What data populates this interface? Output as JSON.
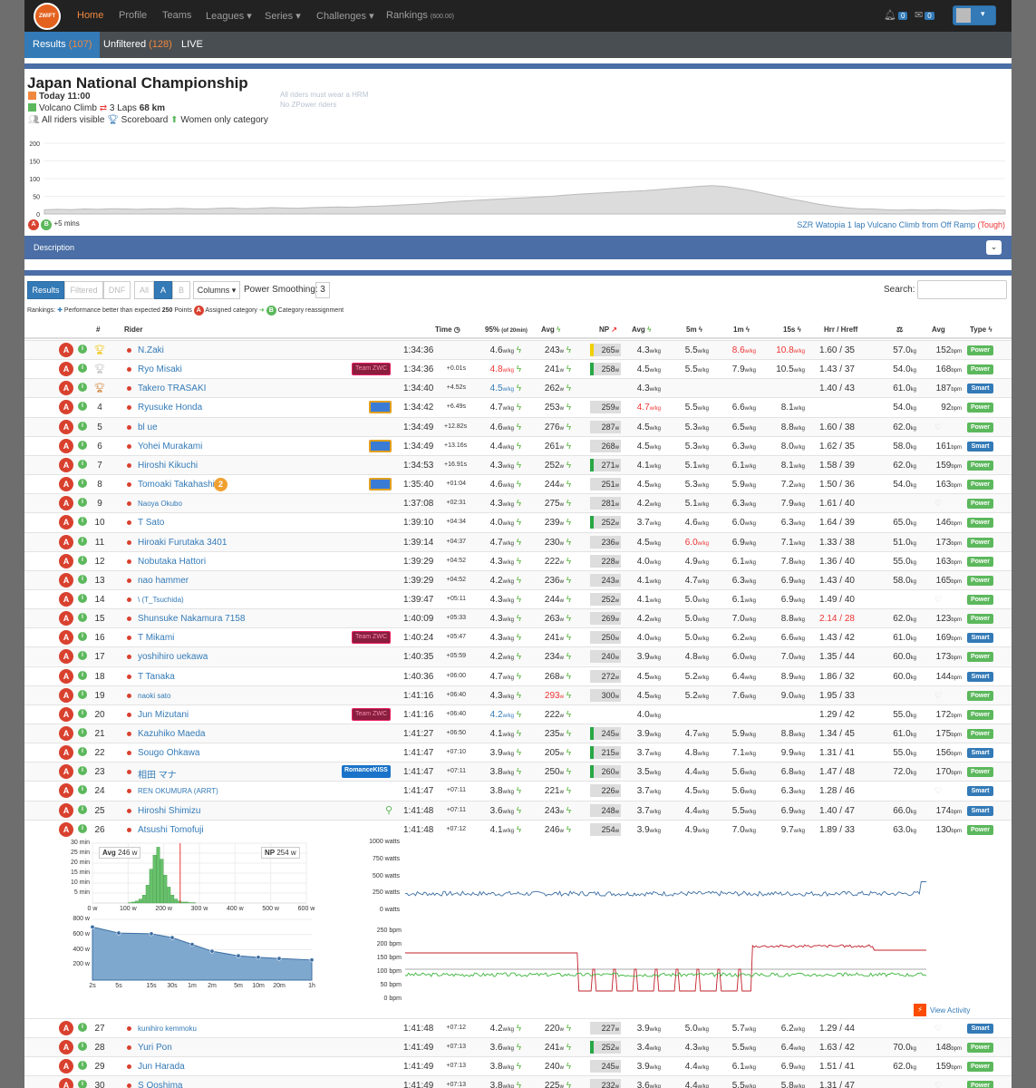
{
  "nav": {
    "logo": "ZWIFT POWER",
    "links": [
      "Home",
      "Profile",
      "Teams",
      "Leagues",
      "Series",
      "Challenges",
      "Rankings"
    ],
    "rankings_suffix": "(600.00)",
    "bell_count": "0",
    "mail_count": "0"
  },
  "subnav": {
    "results_label": "Results",
    "results_count": "(107)",
    "unfiltered_label": "Unfiltered",
    "unfiltered_count": "(128)",
    "live_label": "LIVE"
  },
  "event": {
    "title": "Japan National Championship",
    "date": "Today 11:00",
    "route": "Volcano Climb",
    "laps": "3 Laps",
    "distance": "68 km",
    "visibility": "All riders visible",
    "scoreboard": "Scoreboard",
    "women": "Women only category",
    "note1": "All riders must wear a HRM",
    "note2": "No ZPower riders",
    "cat_a": "A",
    "cat_b": "B",
    "cat_gap": "+5 mins",
    "route_desc": "SZR Watopia 1 lap Vulcano Climb from Off Ramp",
    "route_diff": "(Tough)",
    "elev_ticks": [
      "200",
      "150",
      "100",
      "50",
      "0"
    ],
    "elevation_profile": [
      12,
      13,
      12,
      14,
      13,
      15,
      14,
      13,
      15,
      14,
      16,
      15,
      14,
      16,
      17,
      15,
      16,
      18,
      17,
      16,
      18,
      19,
      20,
      19,
      21,
      22,
      24,
      26,
      28,
      30,
      33,
      36,
      38,
      40,
      42,
      44,
      46,
      48,
      50,
      53,
      56,
      58,
      60,
      62,
      64,
      66,
      69,
      72,
      75,
      78,
      80,
      78,
      72,
      66,
      58,
      50,
      42,
      35,
      28,
      22,
      18,
      15,
      14,
      12,
      11,
      12,
      11,
      12,
      11,
      10,
      11,
      12,
      11
    ]
  },
  "description_label": "Description",
  "controls": {
    "results": "Results",
    "filtered": "Filtered",
    "dnf": "DNF",
    "all": "All",
    "a": "A",
    "b": "B",
    "columns": "Columns",
    "smoothing_label": "Power Smoothing:",
    "smoothing_value": "3",
    "search_label": "Search:"
  },
  "legend": {
    "rankings": "Rankings:",
    "perf": "Performance better than expected",
    "points": "250",
    "points_label": "Points",
    "assigned": "Assigned category",
    "reassign": "Category reassignment"
  },
  "headers": {
    "pos": "#",
    "rider": "Rider",
    "time": "Time",
    "p95": "95%",
    "p95sub": "(of 20min)",
    "avg": "Avg",
    "np": "NP",
    "wkg": "Avg",
    "m5": "5m",
    "m1": "1m",
    "s15": "15s",
    "hr": "Hrr / Hreff",
    "bpm": "Avg",
    "type": "Type"
  },
  "rows": [
    {
      "pos": "",
      "trophy": "gold",
      "name": "N.Zaki",
      "team": "",
      "time": "1:34:36",
      "gap": "",
      "p95": "4.6",
      "p95c": "",
      "avg": "243",
      "np": "265",
      "npbar": "#f0d000",
      "wkg": "4.3",
      "wkgc": "",
      "m5": "5.5",
      "m1": "8.6",
      "m1c": "red",
      "s15": "10.8",
      "s15c": "red",
      "hr": "1.60 / 35",
      "hrc": "",
      "wt": "57.0",
      "bpm": "152",
      "type": "Power"
    },
    {
      "pos": "",
      "trophy": "silver",
      "name": "Ryo Misaki",
      "team": "Team ZWC",
      "teamc": "#c2185b",
      "time": "1:34:36",
      "gap": "+0.01s",
      "p95": "4.8",
      "p95c": "red",
      "avg": "241",
      "np": "258",
      "npbar": "#28a745",
      "wkg": "4.5",
      "wkgc": "",
      "m5": "5.5",
      "m1": "7.9",
      "m1c": "",
      "s15": "10.5",
      "s15c": "",
      "hr": "1.43 / 37",
      "hrc": "",
      "wt": "54.0",
      "bpm": "168",
      "type": "Power"
    },
    {
      "pos": "",
      "trophy": "bronze",
      "name": "Takero TRASAKI",
      "team": "",
      "time": "1:34:40",
      "gap": "+4.52s",
      "p95": "4.5",
      "p95c": "blu",
      "avg": "262",
      "np": "",
      "npbar": "",
      "wkg": "4.3",
      "wkgc": "",
      "m5": "",
      "m1": "",
      "m1c": "",
      "s15": "",
      "s15c": "",
      "hr": "1.40 / 43",
      "hrc": "",
      "wt": "61.0",
      "bpm": "187",
      "type": "Smart"
    },
    {
      "pos": "4",
      "trophy": "",
      "name": "Ryusuke Honda",
      "team": "flag",
      "teamc": "#3a7bd5",
      "time": "1:34:42",
      "gap": "+6.49s",
      "p95": "4.7",
      "p95c": "",
      "avg": "253",
      "np": "259",
      "npbar": "",
      "wkg": "4.7",
      "wkgc": "red",
      "m5": "5.5",
      "m1": "6.6",
      "m1c": "",
      "s15": "8.1",
      "s15c": "",
      "hr": "",
      "hrc": "",
      "wt": "54.0",
      "bpm": "92",
      "type": "Power"
    },
    {
      "pos": "5",
      "trophy": "",
      "name": "bl ue",
      "team": "",
      "time": "1:34:49",
      "gap": "+12.82s",
      "p95": "4.6",
      "p95c": "",
      "avg": "276",
      "np": "287",
      "npbar": "",
      "wkg": "4.5",
      "wkgc": "",
      "m5": "5.3",
      "m1": "6.5",
      "m1c": "",
      "s15": "8.8",
      "s15c": "",
      "hr": "1.60 / 38",
      "hrc": "",
      "wt": "62.0",
      "bpm": "",
      "type": "Power"
    },
    {
      "pos": "6",
      "trophy": "",
      "name": "Yohei Murakami",
      "team": "flag",
      "teamc": "#3a7bd5",
      "time": "1:34:49",
      "gap": "+13.16s",
      "p95": "4.4",
      "p95c": "",
      "avg": "261",
      "np": "268",
      "npbar": "",
      "wkg": "4.5",
      "wkgc": "",
      "m5": "5.3",
      "m1": "6.3",
      "m1c": "",
      "s15": "8.0",
      "s15c": "",
      "hr": "1.62 / 35",
      "hrc": "",
      "wt": "58.0",
      "bpm": "161",
      "type": "Smart"
    },
    {
      "pos": "7",
      "trophy": "",
      "name": "Hiroshi Kikuchi",
      "team": "",
      "time": "1:34:53",
      "gap": "+16.91s",
      "p95": "4.3",
      "p95c": "",
      "avg": "252",
      "np": "271",
      "npbar": "#28a745",
      "wkg": "4.1",
      "wkgc": "",
      "m5": "5.1",
      "m1": "6.1",
      "m1c": "",
      "s15": "8.1",
      "s15c": "",
      "hr": "1.58 / 39",
      "hrc": "",
      "wt": "62.0",
      "bpm": "159",
      "type": "Power"
    },
    {
      "pos": "8",
      "trophy": "",
      "name": "Tomoaki Takahashi",
      "team": "flag",
      "teamc": "#3a7bd5",
      "time": "1:35:40",
      "gap": "+01:04",
      "p95": "4.6",
      "p95c": "",
      "avg": "244",
      "np": "251",
      "npbar": "",
      "wkg": "4.5",
      "wkgc": "",
      "m5": "5.3",
      "m1": "5.9",
      "m1c": "",
      "s15": "7.2",
      "s15c": "",
      "hr": "1.50 / 36",
      "hrc": "",
      "wt": "54.0",
      "bpm": "163",
      "type": "Power"
    },
    {
      "pos": "9",
      "trophy": "",
      "name": "Naoya Okubo",
      "small": true,
      "team": "",
      "time": "1:37:08",
      "gap": "+02:31",
      "p95": "4.3",
      "p95c": "",
      "avg": "275",
      "np": "281",
      "npbar": "",
      "wkg": "4.2",
      "wkgc": "",
      "m5": "5.1",
      "m1": "6.3",
      "m1c": "",
      "s15": "7.9",
      "s15c": "",
      "hr": "1.61 / 40",
      "hrc": "",
      "wt": "",
      "bpm": "",
      "type": "Power"
    },
    {
      "pos": "10",
      "trophy": "",
      "name": "T Sato",
      "team": "",
      "time": "1:39:10",
      "gap": "+04:34",
      "p95": "4.0",
      "p95c": "",
      "avg": "239",
      "np": "252",
      "npbar": "#28a745",
      "wkg": "3.7",
      "wkgc": "",
      "m5": "4.6",
      "m1": "6.0",
      "m1c": "",
      "s15": "6.3",
      "s15c": "",
      "hr": "1.64 / 39",
      "hrc": "",
      "wt": "65.0",
      "bpm": "146",
      "type": "Power"
    },
    {
      "pos": "11",
      "trophy": "",
      "name": "Hiroaki Furutaka 3401",
      "team": "",
      "time": "1:39:14",
      "gap": "+04:37",
      "p95": "4.7",
      "p95c": "",
      "avg": "230",
      "np": "236",
      "npbar": "",
      "wkg": "4.5",
      "wkgc": "",
      "m5": "6.0",
      "m5c": "red",
      "m1": "6.9",
      "m1c": "",
      "s15": "7.1",
      "s15c": "",
      "hr": "1.33 / 38",
      "hrc": "",
      "wt": "51.0",
      "bpm": "173",
      "type": "Power"
    },
    {
      "pos": "12",
      "trophy": "",
      "name": "Nobutaka Hattori",
      "team": "",
      "time": "1:39:29",
      "gap": "+04:52",
      "p95": "4.3",
      "p95c": "",
      "avg": "222",
      "np": "228",
      "npbar": "",
      "wkg": "4.0",
      "wkgc": "",
      "m5": "4.9",
      "m1": "6.1",
      "m1c": "",
      "s15": "7.8",
      "s15c": "",
      "hr": "1.36 / 40",
      "hrc": "",
      "wt": "55.0",
      "bpm": "163",
      "type": "Power"
    },
    {
      "pos": "13",
      "trophy": "",
      "name": "nao hammer",
      "team": "",
      "time": "1:39:29",
      "gap": "+04:52",
      "p95": "4.2",
      "p95c": "",
      "avg": "236",
      "np": "243",
      "npbar": "",
      "wkg": "4.1",
      "wkgc": "",
      "m5": "4.7",
      "m1": "6.3",
      "m1c": "",
      "s15": "6.9",
      "s15c": "",
      "hr": "1.43 / 40",
      "hrc": "",
      "wt": "58.0",
      "bpm": "165",
      "type": "Power"
    },
    {
      "pos": "14",
      "trophy": "",
      "name": "\\ (T_Tsuchida)",
      "small": true,
      "team": "",
      "time": "1:39:47",
      "gap": "+05:11",
      "p95": "4.3",
      "p95c": "",
      "avg": "244",
      "np": "252",
      "npbar": "",
      "wkg": "4.1",
      "wkgc": "",
      "m5": "5.0",
      "m1": "6.1",
      "m1c": "",
      "s15": "6.9",
      "s15c": "",
      "hr": "1.49 / 40",
      "hrc": "",
      "wt": "",
      "bpm": "",
      "type": "Power"
    },
    {
      "pos": "15",
      "trophy": "",
      "name": "Shunsuke Nakamura 7158",
      "team": "",
      "time": "1:40:09",
      "gap": "+05:33",
      "p95": "4.3",
      "p95c": "",
      "avg": "263",
      "np": "269",
      "npbar": "",
      "wkg": "4.2",
      "wkgc": "",
      "m5": "5.0",
      "m1": "7.0",
      "m1c": "",
      "s15": "8.8",
      "s15c": "",
      "hr": "2.14 / 28",
      "hrc": "red",
      "wt": "62.0",
      "bpm": "123",
      "type": "Power"
    },
    {
      "pos": "16",
      "trophy": "",
      "name": "T Mikami",
      "team": "Team ZWC",
      "teamc": "#c2185b",
      "time": "1:40:24",
      "gap": "+05:47",
      "p95": "4.3",
      "p95c": "",
      "avg": "241",
      "np": "250",
      "npbar": "",
      "wkg": "4.0",
      "wkgc": "",
      "m5": "5.0",
      "m1": "6.2",
      "m1c": "",
      "s15": "6.6",
      "s15c": "",
      "hr": "1.43 / 42",
      "hrc": "",
      "wt": "61.0",
      "bpm": "169",
      "type": "Smart"
    },
    {
      "pos": "17",
      "trophy": "",
      "name": "yoshihiro uekawa",
      "team": "",
      "time": "1:40:35",
      "gap": "+05:59",
      "p95": "4.2",
      "p95c": "",
      "avg": "234",
      "np": "240",
      "npbar": "",
      "wkg": "3.9",
      "wkgc": "",
      "m5": "4.8",
      "m1": "6.0",
      "m1c": "",
      "s15": "7.0",
      "s15c": "",
      "hr": "1.35 / 44",
      "hrc": "",
      "wt": "60.0",
      "bpm": "173",
      "type": "Power"
    },
    {
      "pos": "18",
      "trophy": "",
      "name": "T Tanaka",
      "team": "",
      "time": "1:40:36",
      "gap": "+06:00",
      "p95": "4.7",
      "p95c": "",
      "avg": "268",
      "np": "272",
      "npbar": "",
      "wkg": "4.5",
      "wkgc": "",
      "m5": "5.2",
      "m1": "6.4",
      "m1c": "",
      "s15": "8.9",
      "s15c": "",
      "hr": "1.86 / 32",
      "hrc": "",
      "wt": "60.0",
      "bpm": "144",
      "type": "Smart"
    },
    {
      "pos": "19",
      "trophy": "",
      "name": "naoki sato",
      "small": true,
      "team": "",
      "time": "1:41:16",
      "gap": "+06:40",
      "p95": "4.3",
      "p95c": "",
      "avg": "293",
      "avgc": "red",
      "np": "300",
      "npbar": "",
      "wkg": "4.5",
      "wkgc": "",
      "m5": "5.2",
      "m1": "7.6",
      "m1c": "",
      "s15": "9.0",
      "s15c": "",
      "hr": "1.95 / 33",
      "hrc": "",
      "wt": "",
      "bpm": "",
      "type": "Power"
    },
    {
      "pos": "20",
      "trophy": "",
      "name": "Jun Mizutani",
      "team": "Team ZWC",
      "teamc": "#c2185b",
      "time": "1:41:16",
      "gap": "+06:40",
      "p95": "4.2",
      "p95c": "blu",
      "avg": "222",
      "np": "",
      "npbar": "",
      "wkg": "4.0",
      "wkgc": "",
      "m5": "",
      "m1": "",
      "m1c": "",
      "s15": "",
      "s15c": "",
      "hr": "1.29 / 42",
      "hrc": "",
      "wt": "55.0",
      "bpm": "172",
      "type": "Power"
    },
    {
      "pos": "21",
      "trophy": "",
      "name": "Kazuhiko Maeda",
      "team": "",
      "time": "1:41:27",
      "gap": "+06:50",
      "p95": "4.1",
      "p95c": "",
      "avg": "235",
      "np": "245",
      "npbar": "#28a745",
      "wkg": "3.9",
      "wkgc": "",
      "m5": "4.7",
      "m1": "5.9",
      "m1c": "",
      "s15": "8.8",
      "s15c": "",
      "hr": "1.34 / 45",
      "hrc": "",
      "wt": "61.0",
      "bpm": "175",
      "type": "Power"
    },
    {
      "pos": "22",
      "trophy": "",
      "name": "Sougo Ohkawa",
      "team": "",
      "time": "1:41:47",
      "gap": "+07:10",
      "p95": "3.9",
      "p95c": "",
      "avg": "205",
      "np": "215",
      "npbar": "#28a745",
      "wkg": "3.7",
      "wkgc": "",
      "m5": "4.8",
      "m1": "7.1",
      "m1c": "",
      "s15": "9.9",
      "s15c": "",
      "hr": "1.31 / 41",
      "hrc": "",
      "wt": "55.0",
      "bpm": "156",
      "type": "Smart"
    },
    {
      "pos": "23",
      "trophy": "",
      "name": "相田 マナ",
      "team": "RomanceKISS",
      "teamc": "#1a73c9",
      "time": "1:41:47",
      "gap": "+07:11",
      "p95": "3.8",
      "p95c": "",
      "avg": "250",
      "np": "260",
      "npbar": "#28a745",
      "wkg": "3.5",
      "wkgc": "",
      "m5": "4.4",
      "m1": "5.6",
      "m1c": "",
      "s15": "6.8",
      "s15c": "",
      "hr": "1.47 / 48",
      "hrc": "",
      "wt": "72.0",
      "bpm": "170",
      "type": "Power"
    },
    {
      "pos": "24",
      "trophy": "",
      "name": "REN OKUMURA (ARRT)",
      "small": true,
      "team": "",
      "time": "1:41:47",
      "gap": "+07:11",
      "p95": "3.8",
      "p95c": "",
      "avg": "221",
      "np": "226",
      "npbar": "",
      "wkg": "3.7",
      "wkgc": "",
      "m5": "4.5",
      "m1": "5.6",
      "m1c": "",
      "s15": "6.3",
      "s15c": "",
      "hr": "1.28 / 46",
      "hrc": "",
      "wt": "",
      "bpm": "",
      "type": "Smart"
    },
    {
      "pos": "25",
      "trophy": "",
      "name": "Hiroshi Shimizu",
      "team": "",
      "time": "1:41:48",
      "gap": "+07:11",
      "p95": "3.6",
      "p95c": "",
      "avg": "243",
      "np": "248",
      "npbar": "",
      "wkg": "3.7",
      "wkgc": "",
      "m5": "4.4",
      "m1": "5.5",
      "m1c": "",
      "s15": "6.9",
      "s15c": "",
      "hr": "1.40 / 47",
      "hrc": "",
      "wt": "66.0",
      "bpm": "174",
      "type": "Smart"
    },
    {
      "pos": "26",
      "trophy": "",
      "name": "Atsushi Tomofuji",
      "team": "",
      "time": "1:41:48",
      "gap": "+07:12",
      "p95": "4.1",
      "p95c": "",
      "avg": "246",
      "np": "254",
      "npbar": "",
      "wkg": "3.9",
      "wkgc": "",
      "m5": "4.9",
      "m1": "7.0",
      "m1c": "",
      "s15": "9.7",
      "s15c": "",
      "hr": "1.89 / 33",
      "hrc": "",
      "wt": "63.0",
      "bpm": "130",
      "type": "Power"
    }
  ],
  "rows_after": [
    {
      "pos": "27",
      "trophy": "",
      "name": "kunihiro kemmoku",
      "small": true,
      "team": "",
      "time": "1:41:48",
      "gap": "+07:12",
      "p95": "4.2",
      "p95c": "",
      "avg": "220",
      "np": "227",
      "npbar": "",
      "wkg": "3.9",
      "wkgc": "",
      "m5": "5.0",
      "m1": "5.7",
      "m1c": "",
      "s15": "6.2",
      "s15c": "",
      "hr": "1.29 / 44",
      "hrc": "",
      "wt": "",
      "bpm": "",
      "type": "Smart"
    },
    {
      "pos": "28",
      "trophy": "",
      "name": "Yuri Pon",
      "team": "",
      "time": "1:41:49",
      "gap": "+07:13",
      "p95": "3.6",
      "p95c": "",
      "avg": "241",
      "np": "252",
      "npbar": "#28a745",
      "wkg": "3.4",
      "wkgc": "",
      "m5": "4.3",
      "m1": "5.5",
      "m1c": "",
      "s15": "6.4",
      "s15c": "",
      "hr": "1.63 / 42",
      "hrc": "",
      "wt": "70.0",
      "bpm": "148",
      "type": "Power"
    },
    {
      "pos": "29",
      "trophy": "",
      "name": "Jun Harada",
      "team": "",
      "time": "1:41:49",
      "gap": "+07:13",
      "p95": "3.8",
      "p95c": "",
      "avg": "240",
      "np": "245",
      "npbar": "",
      "wkg": "3.9",
      "wkgc": "",
      "m5": "4.4",
      "m1": "6.1",
      "m1c": "",
      "s15": "6.9",
      "s15c": "",
      "hr": "1.51 / 41",
      "hrc": "",
      "wt": "62.0",
      "bpm": "159",
      "type": "Power"
    },
    {
      "pos": "30",
      "trophy": "",
      "name": "S Ooshima",
      "team": "",
      "time": "1:41:49",
      "gap": "+07:13",
      "p95": "3.8",
      "p95c": "",
      "avg": "225",
      "np": "232",
      "npbar": "",
      "wkg": "3.6",
      "wkgc": "",
      "m5": "4.4",
      "m1": "5.5",
      "m1c": "",
      "s15": "5.8",
      "s15c": "",
      "hr": "1.31 / 47",
      "hrc": "",
      "wt": "",
      "bpm": "",
      "type": "Power"
    }
  ],
  "detail": {
    "hist_avg_label": "Avg",
    "hist_avg": "246 w",
    "hist_np_label": "NP",
    "hist_np": "254 w",
    "hist_y": [
      "30 min",
      "25 min",
      "20 min",
      "15 min",
      "10 min",
      "5 min"
    ],
    "hist_x": [
      "0 w",
      "100 w",
      "200 w",
      "300 w",
      "400 w",
      "500 w",
      "600 w"
    ],
    "hist_values": [
      0,
      0,
      0,
      0,
      0,
      0,
      0,
      0,
      0,
      0,
      0.2,
      0.5,
      1,
      2,
      4,
      9,
      17,
      24,
      28,
      22,
      14,
      8,
      4,
      2,
      1,
      0.5,
      0.5,
      0.2,
      0.2,
      0,
      0,
      0,
      0,
      0,
      0,
      0,
      0,
      0,
      0,
      0
    ],
    "curve_y": [
      "800 w",
      "600 w",
      "400 w",
      "200 w"
    ],
    "curve_x": [
      "2s",
      "5s",
      "15s",
      "30s",
      "1m",
      "2m",
      "5m",
      "10m",
      "20m",
      "1h"
    ],
    "curve_values": [
      700,
      620,
      610,
      560,
      470,
      380,
      320,
      300,
      285,
      265
    ],
    "watts_y": [
      "1000 watts",
      "750 watts",
      "500 watts",
      "250 watts",
      "0 watts"
    ],
    "bpm_y": [
      "250 bpm",
      "200 bpm",
      "150 bpm",
      "100 bpm",
      "50 bpm",
      "0 bpm"
    ],
    "view_activity": "View Activity"
  },
  "units": {
    "wkg": "w/kg",
    "w": "w",
    "kg": "kg",
    "bpm": "bpm"
  },
  "colors": {
    "accent": "#337ab7",
    "cat_a": "#d9412f",
    "cat_b": "#5cb85c",
    "power": "#5cb85c",
    "smart": "#337ab7",
    "red": "#e33"
  }
}
